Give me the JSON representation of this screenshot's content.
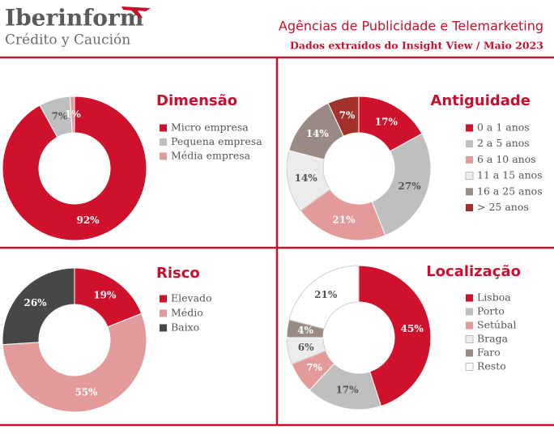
{
  "header": {
    "logo": "Iberinform",
    "tagline": "Crédito y Caución",
    "title": "Agências  de Publicidade e Telemarketing",
    "subtitle": "Dados extraídos do Insight View / Maio 2023"
  },
  "chart_data": [
    {
      "type": "pie",
      "title": "Dimensão",
      "categories": [
        "Micro empresa",
        "Pequena empresa",
        "Média empresa"
      ],
      "values": [
        92,
        7,
        1
      ],
      "value_labels": [
        "92%",
        "7%",
        "1%"
      ],
      "colors": [
        "#d0112b",
        "#bfbfbf",
        "#e39a9a"
      ]
    },
    {
      "type": "pie",
      "title": "Antiguidade",
      "categories": [
        "0 a 1 anos",
        "2 a 5 anos",
        "6 a 10 anos",
        "11 a 15 anos",
        "16 a 25 anos",
        "> 25 anos"
      ],
      "values": [
        17,
        27,
        21,
        14,
        14,
        7
      ],
      "value_labels": [
        "17%",
        "27%",
        "21%",
        "14%",
        "14%",
        "7%"
      ],
      "colors": [
        "#d0112b",
        "#bfbfbf",
        "#e39a9a",
        "#ececec",
        "#9b8b85",
        "#a4302c"
      ]
    },
    {
      "type": "pie",
      "title": "Risco",
      "categories": [
        "Elevado",
        "Médio",
        "Baixo"
      ],
      "values": [
        19,
        55,
        26
      ],
      "value_labels": [
        "19%",
        "55%",
        "26%"
      ],
      "colors": [
        "#d0112b",
        "#e39a9a",
        "#474747"
      ]
    },
    {
      "type": "pie",
      "title": "Localização",
      "categories": [
        "Lisboa",
        "Porto",
        "Setúbal",
        "Braga",
        "Faro",
        "Resto"
      ],
      "values": [
        45,
        17,
        7,
        6,
        4,
        21
      ],
      "value_labels": [
        "45%",
        "17%",
        "7%",
        "6%",
        "4%",
        "21%"
      ],
      "colors": [
        "#d0112b",
        "#bfbfbf",
        "#e39a9a",
        "#ececec",
        "#9b8b85",
        "#ffffff"
      ]
    }
  ]
}
